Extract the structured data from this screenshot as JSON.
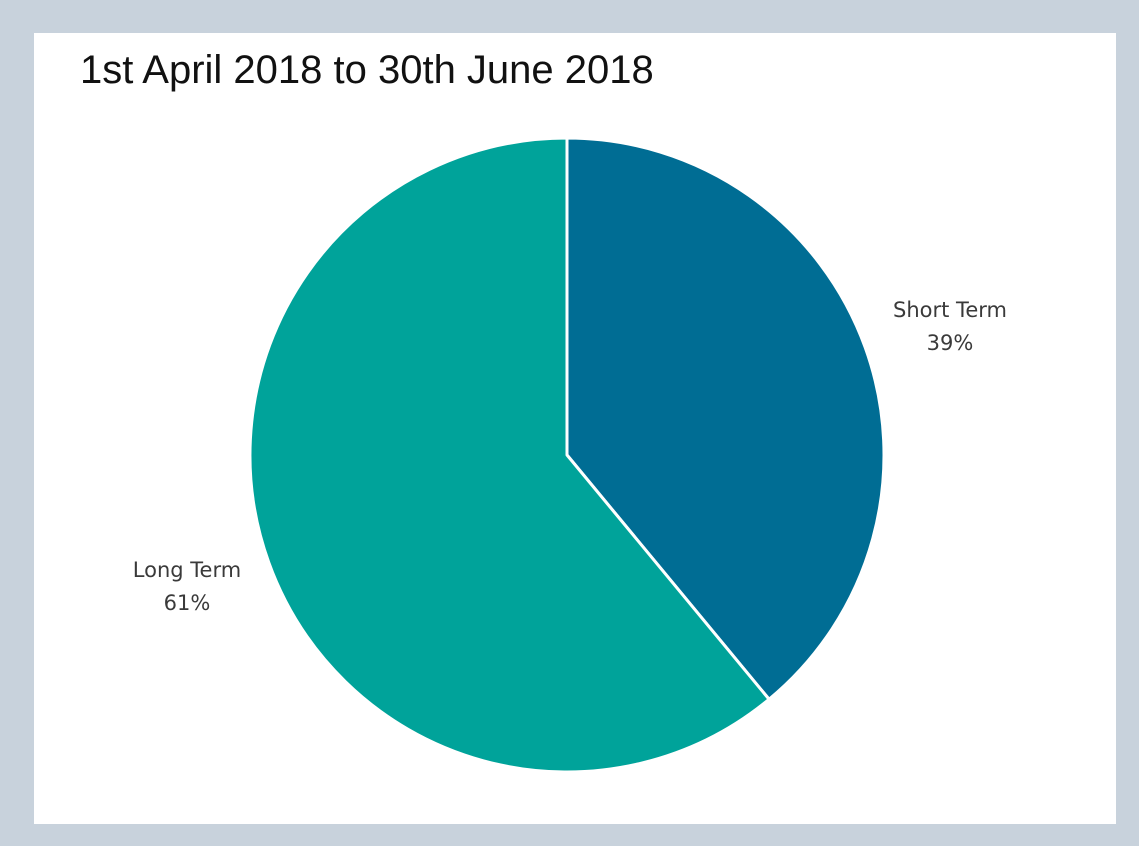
{
  "chart_data": {
    "type": "pie",
    "title": "1st April 2018 to 30th June 2018",
    "slices": [
      {
        "label": "Short Term",
        "value": 39,
        "value_label": "39%",
        "color": "#006d94"
      },
      {
        "label": "Long Term",
        "value": 61,
        "value_label": "61%",
        "color": "#00a39a"
      }
    ],
    "start_angle": "12 o'clock",
    "direction": "clockwise",
    "legend": "none (data labels outside slices)"
  },
  "colors": {
    "background_frame": "#c8d2dc",
    "panel": "#ffffff",
    "slice_separator": "#ffffff"
  }
}
